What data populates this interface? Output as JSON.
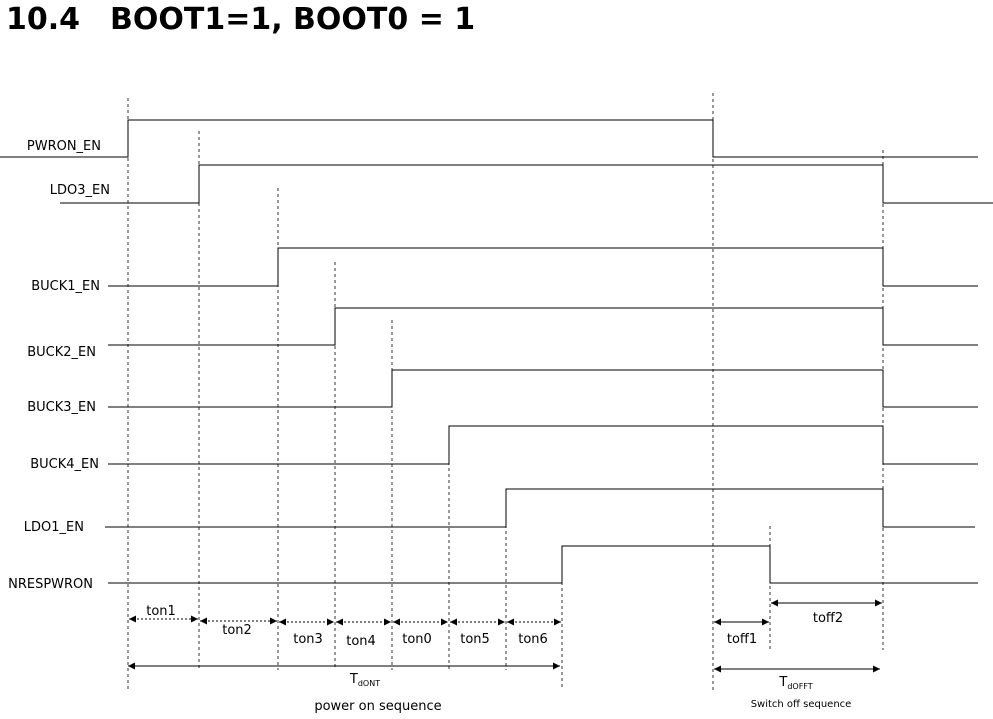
{
  "section": {
    "number": "10.4",
    "title": "BOOT1=1, BOOT0 = 1"
  },
  "signals": [
    {
      "name": "PWRON_EN"
    },
    {
      "name": "LDO3_EN"
    },
    {
      "name": "BUCK1_EN"
    },
    {
      "name": "BUCK2_EN"
    },
    {
      "name": "BUCK3_EN"
    },
    {
      "name": "BUCK4_EN"
    },
    {
      "name": "LDO1_EN"
    },
    {
      "name": "NRESPWRON"
    }
  ],
  "intervals": [
    "ton1",
    "ton2",
    "ton3",
    "ton4",
    "ton0",
    "ton5",
    "ton6",
    "toff1",
    "toff2"
  ],
  "spans": {
    "on": {
      "main": "T",
      "sub": "dONT",
      "caption": "power on sequence"
    },
    "off": {
      "main": "T",
      "sub": "dOFFT",
      "caption": "Switch off sequence"
    }
  }
}
